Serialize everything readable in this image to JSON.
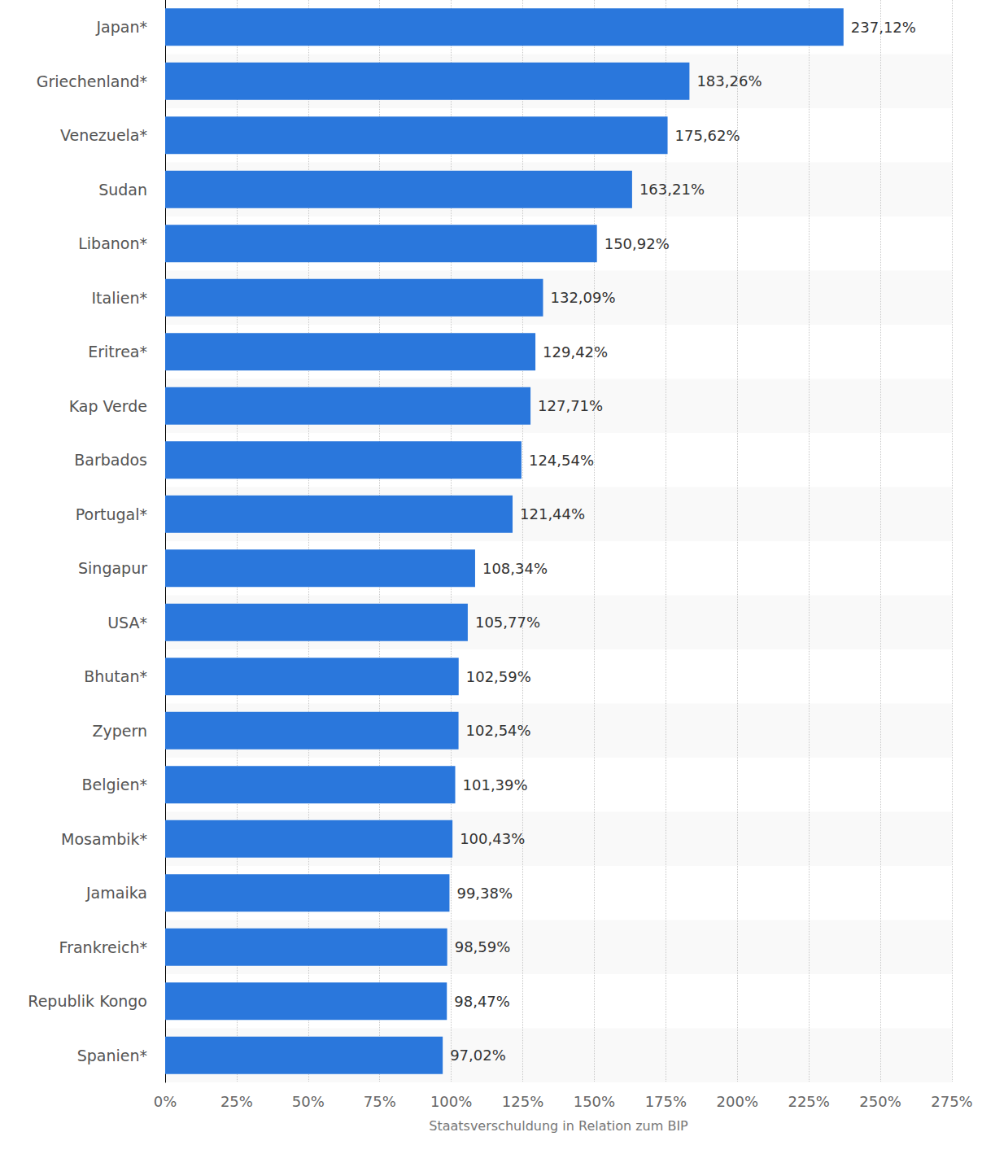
{
  "chart_data": {
    "type": "bar",
    "orientation": "horizontal",
    "x_label": "Staatsverschuldung in Relation zum BIP",
    "categories": [
      "Japan*",
      "Griechenland*",
      "Venezuela*",
      "Sudan",
      "Libanon*",
      "Italien*",
      "Eritrea*",
      "Kap Verde",
      "Barbados",
      "Portugal*",
      "Singapur",
      "USA*",
      "Bhutan*",
      "Zypern",
      "Belgien*",
      "Mosambik*",
      "Jamaika",
      "Frankreich*",
      "Republik Kongo",
      "Spanien*"
    ],
    "values": [
      237.12,
      183.26,
      175.62,
      163.21,
      150.92,
      132.09,
      129.42,
      127.71,
      124.54,
      121.44,
      108.34,
      105.77,
      102.59,
      102.54,
      101.39,
      100.43,
      99.38,
      98.59,
      98.47,
      97.02
    ],
    "value_labels": [
      "237,12%",
      "183,26%",
      "175,62%",
      "163,21%",
      "150,92%",
      "132,09%",
      "129,42%",
      "127,71%",
      "124,54%",
      "121,44%",
      "108,34%",
      "105,77%",
      "102,59%",
      "102,54%",
      "101,39%",
      "100,43%",
      "99,38%",
      "98,59%",
      "98,47%",
      "97,02%"
    ],
    "color": "#2a77dc",
    "xlim": [
      0,
      275
    ],
    "xticks": [
      {
        "value": 0,
        "label": "0%"
      },
      {
        "value": 25,
        "label": "25%"
      },
      {
        "value": 50,
        "label": "50%"
      },
      {
        "value": 75,
        "label": "75%"
      },
      {
        "value": 100,
        "label": "100%"
      },
      {
        "value": 125,
        "label": "125%"
      },
      {
        "value": 150,
        "label": "150%"
      },
      {
        "value": 175,
        "label": "175%"
      },
      {
        "value": 200,
        "label": "200%"
      },
      {
        "value": 225,
        "label": "225%"
      },
      {
        "value": 250,
        "label": "250%"
      },
      {
        "value": 275,
        "label": "275%"
      }
    ],
    "grid": true,
    "data_labels": true
  }
}
